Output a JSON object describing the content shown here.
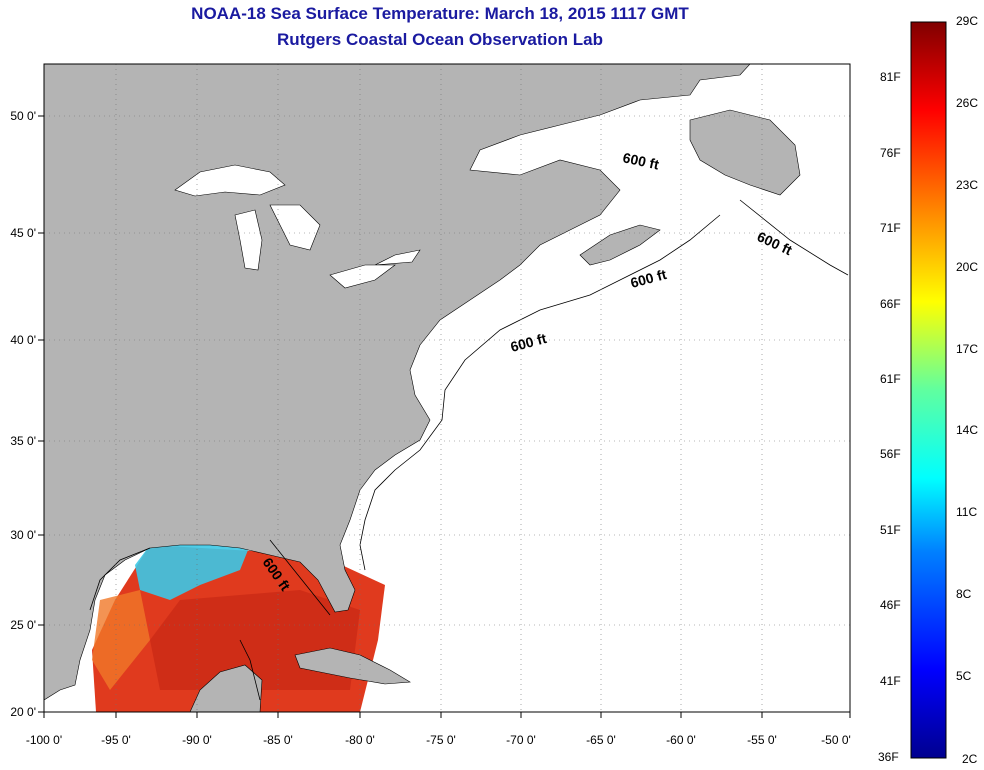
{
  "title": {
    "line1": "NOAA-18 Sea Surface Temperature:  March 18, 2015 1117 GMT",
    "line2": "Rutgers Coastal Ocean Observation Lab"
  },
  "axes": {
    "lon_labels": [
      "-100 0'",
      "-95 0'",
      "-90 0'",
      "-85 0'",
      "-80 0'",
      "-75 0'",
      "-70 0'",
      "-65 0'",
      "-60 0'",
      "-55 0'",
      "-50 0'"
    ],
    "lat_labels": [
      "50 0'",
      "45 0'",
      "40 0'",
      "35 0'",
      "30 0'",
      "25 0'",
      "20 0'"
    ]
  },
  "contour_labels": [
    "600 ft",
    "600 ft",
    "600 ft",
    "600 ft",
    "600 ft"
  ],
  "colorbar": {
    "celsius": [
      "29C",
      "26C",
      "23C",
      "20C",
      "17C",
      "14C",
      "11C",
      "8C",
      "5C",
      "2C"
    ],
    "fahrenheit": [
      "81F",
      "76F",
      "71F",
      "66F",
      "61F",
      "56F",
      "51F",
      "46F",
      "41F",
      "36F"
    ]
  },
  "colors": {
    "land": "#b4b4b4",
    "ocean": "#ffffff",
    "title": "#1a1aa0",
    "sst_warm": "#e8321e",
    "sst_cool": "#3cc8e6"
  }
}
